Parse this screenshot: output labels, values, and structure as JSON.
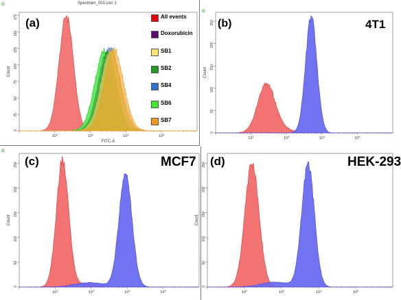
{
  "figure": {
    "panel_a_title": "Specimen_001-con 1",
    "panel_a_xlabel": "FITC-A",
    "count_label": "Count",
    "corner_marks": [
      "o",
      "o",
      "o",
      "o"
    ]
  },
  "colors": {
    "all_events": "#e8000a",
    "doxorubicin": "#5b0a6e",
    "sb1": "#ffe36c",
    "sb2": "#239b23",
    "sb4": "#2f6fd6",
    "sb6": "#41e82e",
    "sb7": "#f39a1e",
    "red_fill": "#f26a6a",
    "blue_fill": "#6a6cf0",
    "green_fill": "#5be95b",
    "olive_fill": "#9b9957"
  },
  "chart_data": [
    {
      "panel": "(a)",
      "name": "",
      "type": "area",
      "xscale": "log",
      "xlabel": "FITC-A",
      "ylabel": "Count",
      "xlim": [
        10,
        1000000
      ],
      "xticks": [
        "10^2",
        "10^3",
        "10^4",
        "10^5"
      ],
      "yticks": [
        "0",
        "25",
        "50",
        "75",
        "100",
        "125",
        "150",
        "175"
      ],
      "ylim": [
        0,
        180
      ],
      "legend": [
        "All events",
        "Doxorubicin",
        "SB1",
        "SB2",
        "SB4",
        "SB6",
        "SB7"
      ],
      "legend_placement": "right",
      "series": [
        {
          "name": "All events",
          "peak_x": 210,
          "peak_y": 175,
          "log_width": 0.2
        },
        {
          "name": "SB6",
          "peak_x": 2500,
          "peak_y": 122,
          "log_width": 0.27
        },
        {
          "name": "SB4",
          "peak_x": 3600,
          "peak_y": 125,
          "log_width": 0.27
        },
        {
          "name": "SB2",
          "peak_x": 3000,
          "peak_y": 118,
          "log_width": 0.26
        },
        {
          "name": "SB1",
          "peak_x": 3800,
          "peak_y": 120,
          "log_width": 0.28
        },
        {
          "name": "SB7",
          "peak_x": 4600,
          "peak_y": 122,
          "log_width": 0.27
        }
      ]
    },
    {
      "panel": "(b)",
      "name": "4T1",
      "type": "area",
      "xscale": "log",
      "ylabel": "Count",
      "xlim": [
        10,
        1000000
      ],
      "xticks": [
        "10^2",
        "10^3",
        "10^4",
        "10^5"
      ],
      "yticks": [
        "0",
        "50",
        "100",
        "150",
        "200",
        "250"
      ],
      "ylim": [
        0,
        270
      ],
      "series": [
        {
          "name": "red",
          "peak_x": 270,
          "peak_y": 110,
          "log_width": 0.24
        },
        {
          "name": "blue",
          "peak_x": 5000,
          "peak_y": 260,
          "log_width": 0.16
        }
      ]
    },
    {
      "panel": "(c)",
      "name": "MCF7",
      "type": "area",
      "xscale": "log",
      "ylabel": "Count",
      "xlim": [
        10,
        1000000
      ],
      "xticks": [
        "10^2",
        "10^3",
        "10^4",
        "10^5"
      ],
      "yticks": [
        "0",
        "50",
        "100",
        "150",
        "200",
        "250"
      ],
      "ylim": [
        0,
        270
      ],
      "series": [
        {
          "name": "red",
          "peak_x": 160,
          "peak_y": 255,
          "log_width": 0.17
        },
        {
          "name": "blue",
          "peak_x": 9000,
          "peak_y": 230,
          "log_width": 0.18
        }
      ]
    },
    {
      "panel": "(d)",
      "name": "HEK-293",
      "type": "area",
      "xscale": "log",
      "ylabel": "Count",
      "xlim": [
        10,
        1000000
      ],
      "xticks": [
        "10^2",
        "10^3",
        "10^4",
        "10^5"
      ],
      "yticks": [
        "0",
        "50",
        "100",
        "150",
        "200",
        "250"
      ],
      "ylim": [
        0,
        270
      ],
      "series": [
        {
          "name": "red",
          "peak_x": 160,
          "peak_y": 250,
          "log_width": 0.19
        },
        {
          "name": "blue",
          "peak_x": 5200,
          "peak_y": 250,
          "log_width": 0.17
        }
      ]
    }
  ]
}
